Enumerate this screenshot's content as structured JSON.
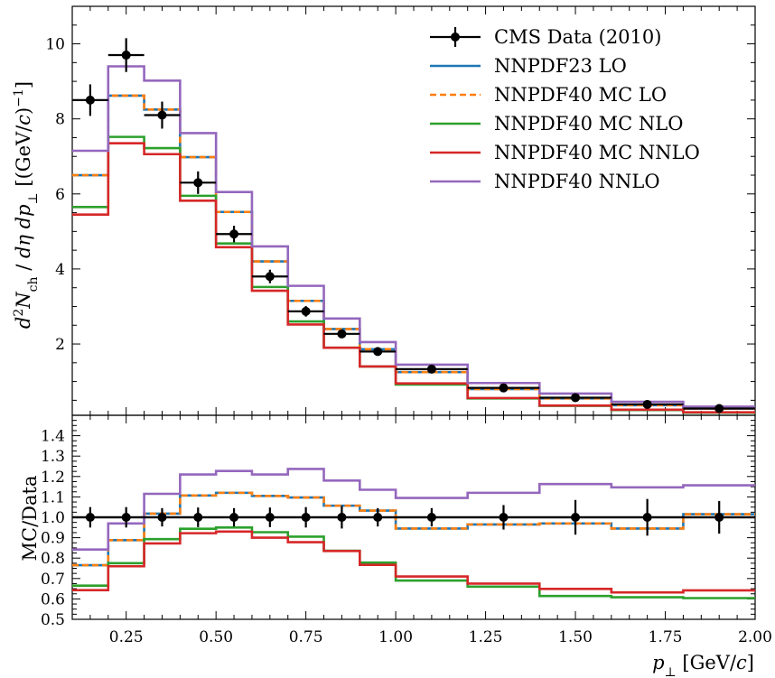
{
  "chart_data": [
    {
      "type": "line",
      "panel": "top",
      "ylabel": "d²N_ch / dη dp⊥ [(GeV/c)⁻¹]",
      "xlim": [
        0.1,
        2.0
      ],
      "ylim": [
        0.1,
        11.0
      ],
      "y_ticks": [
        2,
        4,
        6,
        8,
        10
      ],
      "bin_edges": [
        0.1,
        0.2,
        0.3,
        0.4,
        0.5,
        0.6,
        0.7,
        0.8,
        0.9,
        1.0,
        1.2,
        1.4,
        1.6,
        1.8,
        2.0
      ],
      "data": {
        "name": "CMS Data (2010)",
        "x": [
          0.15,
          0.25,
          0.35,
          0.45,
          0.55,
          0.65,
          0.75,
          0.85,
          0.95,
          1.1,
          1.3,
          1.5,
          1.7,
          1.9
        ],
        "y": [
          8.5,
          9.7,
          8.1,
          6.3,
          4.93,
          3.8,
          2.87,
          2.27,
          1.8,
          1.33,
          0.83,
          0.57,
          0.39,
          0.28
        ],
        "yerr": [
          0.42,
          0.45,
          0.36,
          0.3,
          0.22,
          0.18,
          0.14,
          0.1,
          0.08,
          0.06,
          0.05,
          0.05,
          0.04,
          0.03
        ]
      },
      "series": [
        {
          "name": "NNPDF23 LO",
          "color": "#1f77b4",
          "dashed": false,
          "values": [
            6.5,
            8.62,
            8.25,
            6.98,
            5.52,
            4.2,
            3.15,
            2.4,
            1.86,
            1.25,
            0.8,
            0.55,
            0.37,
            0.28
          ]
        },
        {
          "name": "NNPDF40 MC LO",
          "color": "#ff7f0e",
          "dashed": true,
          "values": [
            6.5,
            8.62,
            8.25,
            6.98,
            5.52,
            4.2,
            3.15,
            2.4,
            1.86,
            1.25,
            0.8,
            0.55,
            0.37,
            0.28
          ]
        },
        {
          "name": "NNPDF40 MC NLO",
          "color": "#2ca02c",
          "dashed": false,
          "values": [
            5.65,
            7.52,
            7.22,
            5.95,
            4.68,
            3.52,
            2.6,
            1.9,
            1.4,
            0.92,
            0.55,
            0.35,
            0.24,
            0.17
          ]
        },
        {
          "name": "NNPDF40 MC NNLO",
          "color": "#d62728",
          "dashed": false,
          "values": [
            5.45,
            7.35,
            7.06,
            5.82,
            4.58,
            3.42,
            2.52,
            1.9,
            1.4,
            0.95,
            0.56,
            0.36,
            0.25,
            0.18
          ]
        },
        {
          "name": "NNPDF40 NNLO",
          "color": "#9467bd",
          "dashed": false,
          "values": [
            7.15,
            9.4,
            9.02,
            7.62,
            6.05,
            4.6,
            3.55,
            2.68,
            2.05,
            1.45,
            0.96,
            0.68,
            0.46,
            0.33
          ]
        }
      ]
    },
    {
      "type": "line",
      "panel": "bottom",
      "ylabel": "MC/Data",
      "xlabel": "p⊥ [GeV/c]",
      "xlim": [
        0.1,
        2.0
      ],
      "ylim": [
        0.5,
        1.5
      ],
      "y_ticks": [
        0.5,
        0.6,
        0.7,
        0.8,
        0.9,
        1.0,
        1.1,
        1.2,
        1.3,
        1.4
      ],
      "x_ticks": [
        0.25,
        0.5,
        0.75,
        1.0,
        1.25,
        1.5,
        1.75,
        2.0
      ],
      "bin_edges": [
        0.1,
        0.2,
        0.3,
        0.4,
        0.5,
        0.6,
        0.7,
        0.8,
        0.9,
        1.0,
        1.2,
        1.4,
        1.6,
        1.8,
        2.0
      ],
      "data": {
        "x": [
          0.15,
          0.25,
          0.35,
          0.45,
          0.55,
          0.65,
          0.75,
          0.85,
          0.95,
          1.1,
          1.3,
          1.5,
          1.7,
          1.9
        ],
        "y": [
          1.0,
          1.0,
          1.0,
          1.0,
          1.0,
          1.0,
          1.0,
          1.0,
          1.0,
          1.0,
          1.0,
          1.0,
          1.0,
          1.0
        ],
        "yerr": [
          0.05,
          0.05,
          0.045,
          0.048,
          0.045,
          0.048,
          0.05,
          0.055,
          0.045,
          0.045,
          0.06,
          0.085,
          0.09,
          0.08
        ]
      },
      "series": [
        {
          "name": "NNPDF23 LO",
          "color": "#1f77b4",
          "dashed": false,
          "values": [
            0.765,
            0.888,
            1.018,
            1.107,
            1.12,
            1.105,
            1.097,
            1.057,
            1.033,
            0.945,
            0.965,
            0.97,
            0.945,
            1.015
          ]
        },
        {
          "name": "NNPDF40 MC LO",
          "color": "#ff7f0e",
          "dashed": true,
          "values": [
            0.765,
            0.888,
            1.018,
            1.107,
            1.12,
            1.105,
            1.097,
            1.057,
            1.033,
            0.945,
            0.965,
            0.97,
            0.945,
            1.015
          ]
        },
        {
          "name": "NNPDF40 MC NLO",
          "color": "#2ca02c",
          "dashed": false,
          "values": [
            0.665,
            0.775,
            0.893,
            0.944,
            0.95,
            0.927,
            0.905,
            0.836,
            0.778,
            0.69,
            0.66,
            0.614,
            0.608,
            0.604
          ]
        },
        {
          "name": "NNPDF40 MC NNLO",
          "color": "#d62728",
          "dashed": false,
          "values": [
            0.643,
            0.76,
            0.872,
            0.922,
            0.93,
            0.9,
            0.878,
            0.835,
            0.767,
            0.71,
            0.675,
            0.649,
            0.632,
            0.642
          ]
        },
        {
          "name": "NNPDF40 NNLO",
          "color": "#9467bd",
          "dashed": false,
          "values": [
            0.842,
            0.97,
            1.115,
            1.21,
            1.227,
            1.21,
            1.237,
            1.18,
            1.135,
            1.095,
            1.12,
            1.163,
            1.147,
            1.157
          ]
        }
      ]
    }
  ],
  "legend": {
    "placement": "top-right",
    "entries": [
      "CMS Data (2010)",
      "NNPDF23 LO",
      "NNPDF40 MC LO",
      "NNPDF40 MC NLO",
      "NNPDF40 MC NNLO",
      "NNPDF40 NNLO"
    ]
  },
  "tick_labels": {
    "top_y": [
      "2",
      "4",
      "6",
      "8",
      "10"
    ],
    "bottom_y": [
      "0.5",
      "0.6",
      "0.7",
      "0.8",
      "0.9",
      "1.0",
      "1.1",
      "1.2",
      "1.3",
      "1.4"
    ],
    "x": [
      "0.25",
      "0.50",
      "0.75",
      "1.00",
      "1.25",
      "1.50",
      "1.75",
      "2.00"
    ]
  }
}
